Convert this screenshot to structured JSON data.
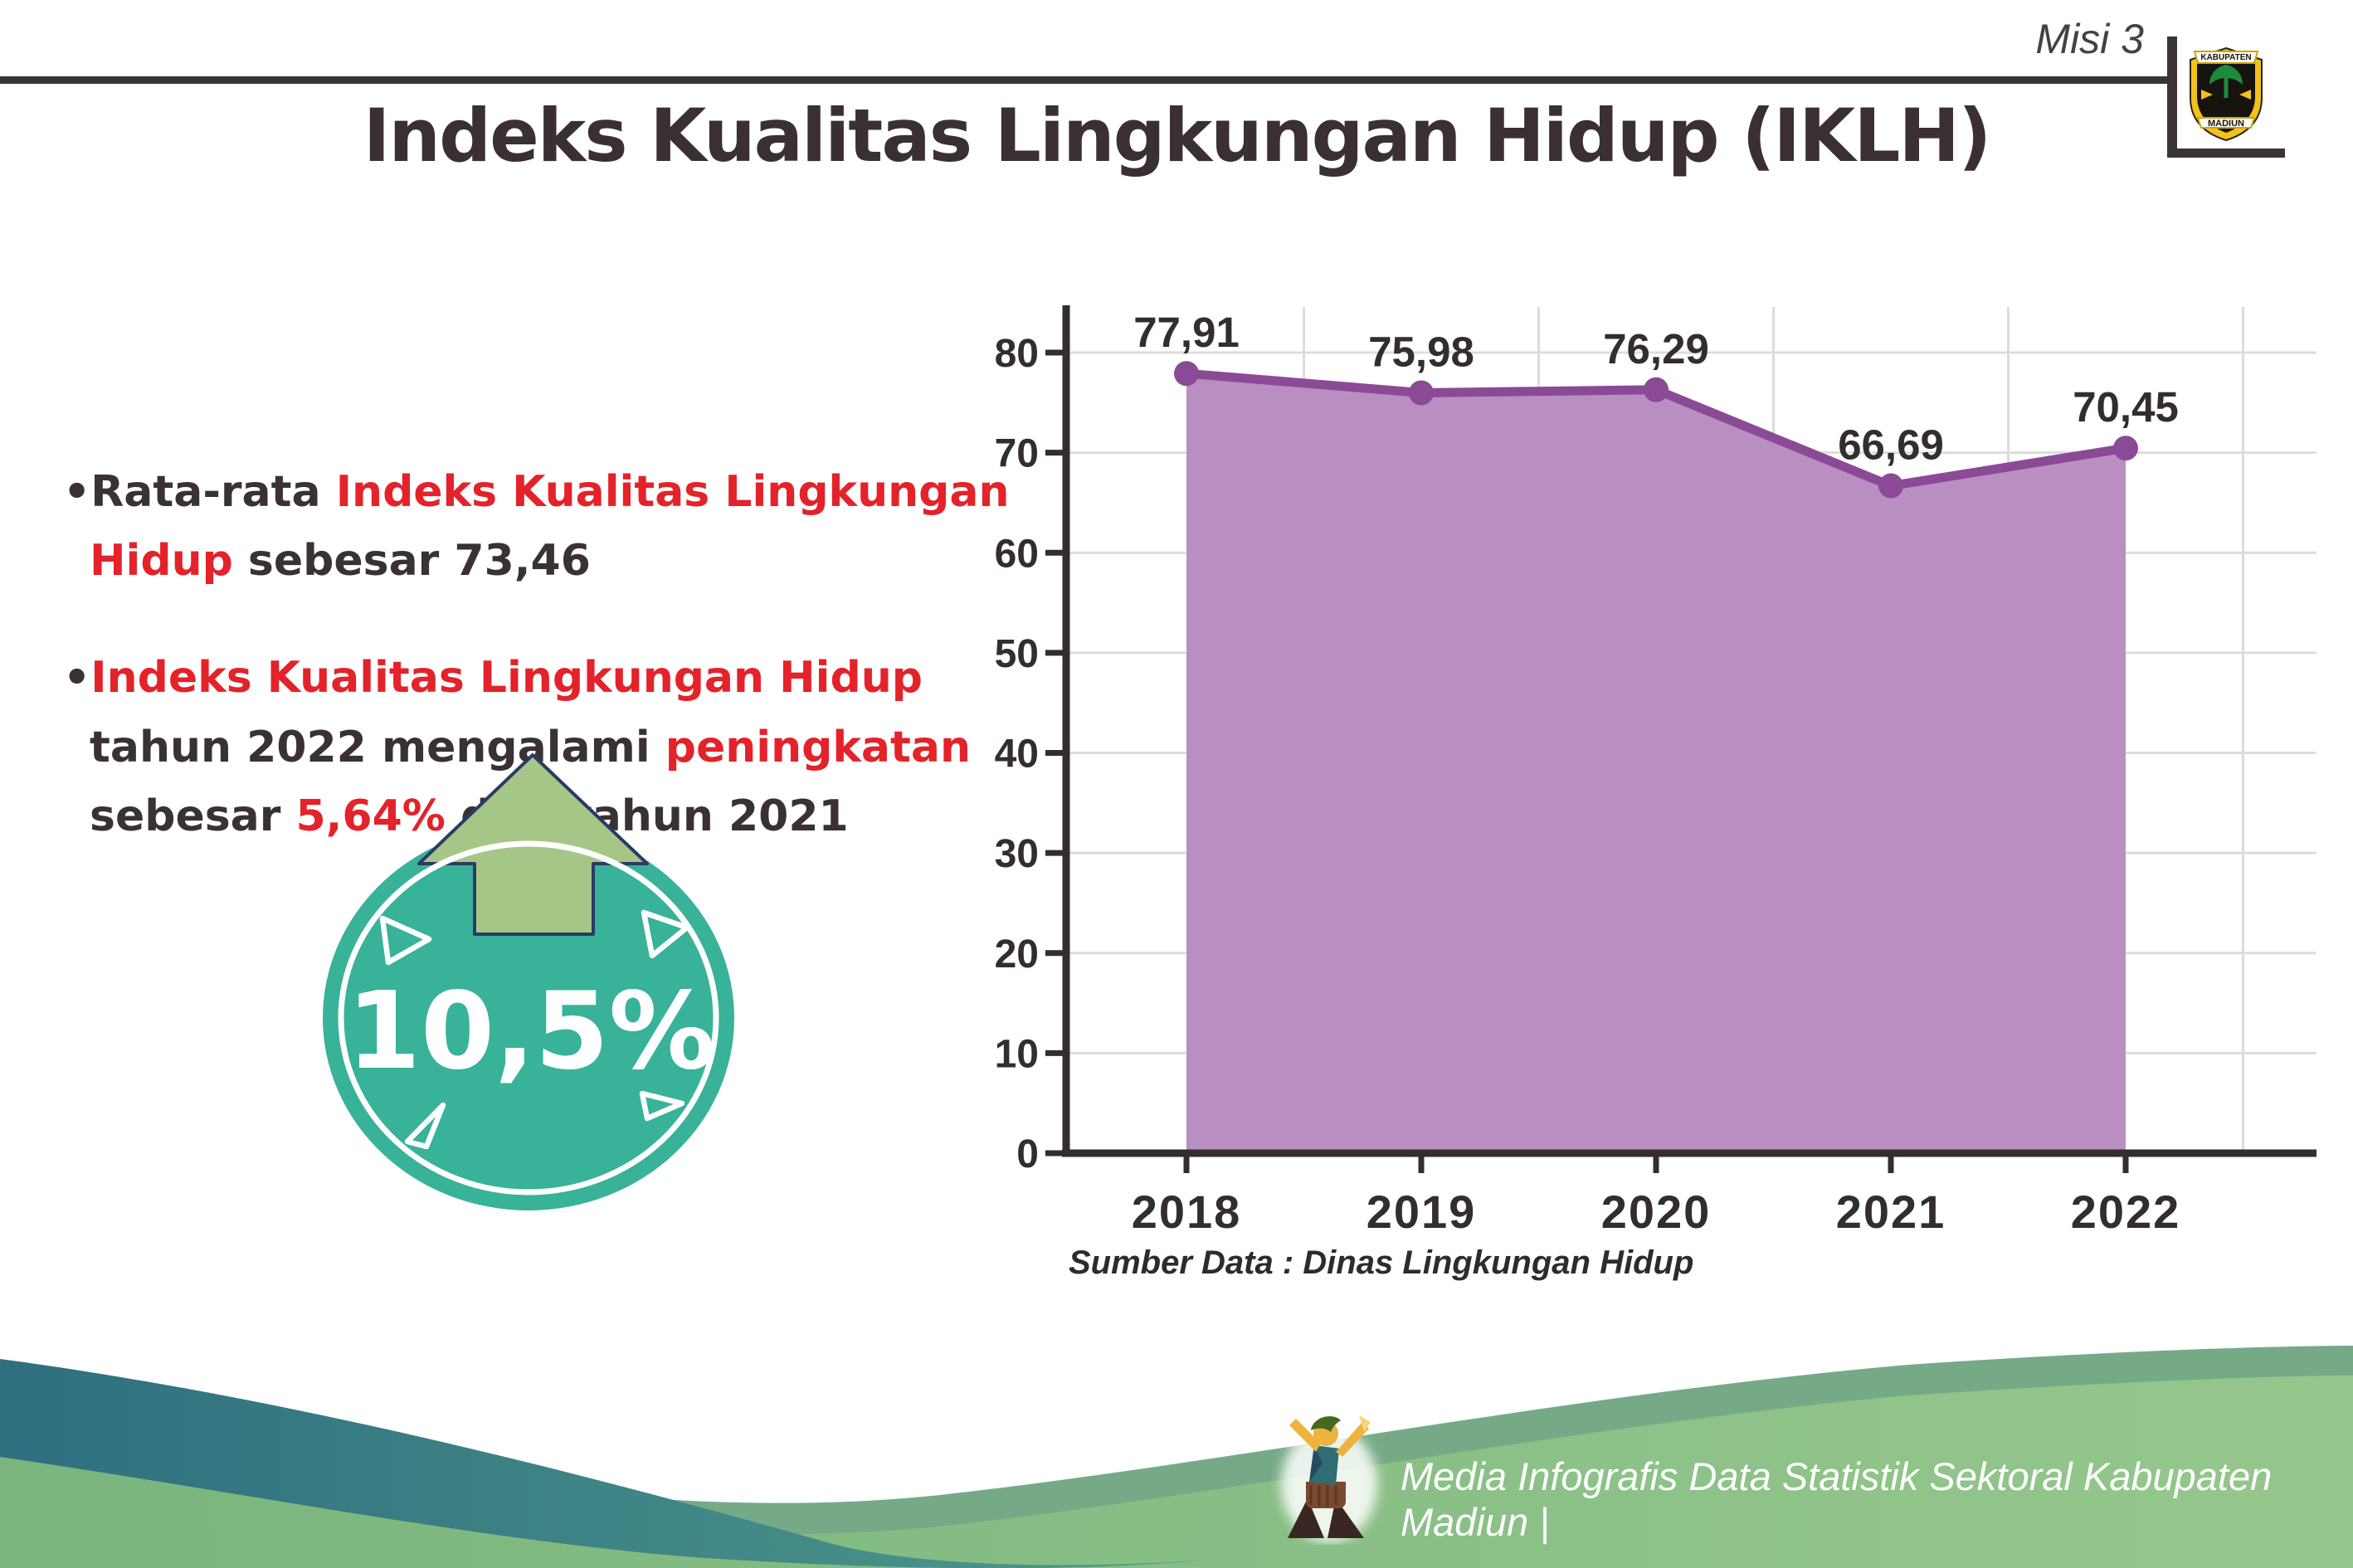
{
  "header": {
    "misi_label": "Misi 3",
    "logo": {
      "top_banner": "KABUPATEN",
      "bottom_banner": "MADIUN"
    }
  },
  "title": "Indeks Kualitas Lingkungan Hidup (IKLH)",
  "bullets": [
    {
      "segments": [
        {
          "text": "Rata-rata ",
          "color": "dark"
        },
        {
          "text": "Indeks Kualitas Lingkungan Hidup",
          "color": "red"
        },
        {
          "text": " sebesar 73,46",
          "color": "dark"
        }
      ]
    },
    {
      "segments": [
        {
          "text": "Indeks Kualitas Lingkungan Hidup",
          "color": "red"
        },
        {
          "text": " tahun 2022 mengalami ",
          "color": "dark"
        },
        {
          "text": "peningkatan",
          "color": "red"
        },
        {
          "text": " sebesar ",
          "color": "dark"
        },
        {
          "text": "5,64%",
          "color": "red"
        },
        {
          "text": " dari tahun 2021",
          "color": "dark"
        }
      ]
    }
  ],
  "badge": {
    "value": "10,5%"
  },
  "chart_data": {
    "type": "area",
    "categories": [
      "2018",
      "2019",
      "2020",
      "2021",
      "2022"
    ],
    "series": [
      {
        "name": "IKLH",
        "values": [
          77.91,
          75.98,
          76.29,
          66.69,
          70.45
        ]
      }
    ],
    "value_labels": [
      "77,91",
      "75,98",
      "76,29",
      "66,69",
      "70,45"
    ],
    "title": "",
    "xlabel": "",
    "ylabel": "",
    "ylim": [
      0,
      80
    ],
    "ytick_step": 10,
    "grid": true,
    "legend": "none",
    "colors": {
      "line": "#8b4a96",
      "fill": "#b98fc2",
      "axis": "#332d2e",
      "grid": "#dcdcdc",
      "label": "#332d2e"
    }
  },
  "source_note": "Sumber Data : Dinas Lingkungan Hidup",
  "footer": {
    "credit": "Media Infografis Data Statistik Sektoral Kabupaten Madiun |"
  }
}
